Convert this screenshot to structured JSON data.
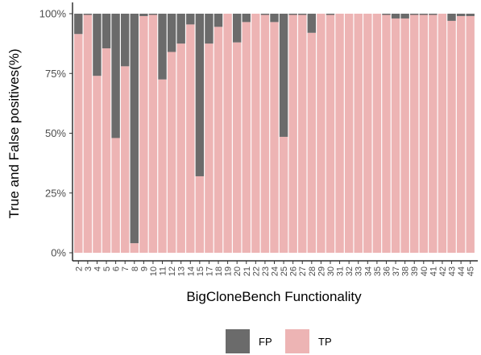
{
  "chart_data": {
    "type": "bar",
    "stacked": true,
    "title": "",
    "xlabel": "BigCloneBench Functionality",
    "ylabel": "True and False positives(%)",
    "ylim": [
      0,
      100
    ],
    "y_ticks": [
      0,
      25,
      50,
      75,
      100
    ],
    "y_tick_labels": [
      "0%",
      "25%",
      "50%",
      "75%",
      "100%"
    ],
    "grid": false,
    "legend_position": "bottom",
    "categories": [
      "2",
      "3",
      "4",
      "5",
      "6",
      "7",
      "8",
      "9",
      "10",
      "11",
      "12",
      "13",
      "14",
      "15",
      "17",
      "18",
      "19",
      "20",
      "21",
      "22",
      "23",
      "24",
      "25",
      "26",
      "27",
      "28",
      "29",
      "30",
      "31",
      "32",
      "33",
      "34",
      "35",
      "36",
      "37",
      "38",
      "39",
      "40",
      "41",
      "42",
      "43",
      "44",
      "45"
    ],
    "series": [
      {
        "name": "TP",
        "color": "#edb4b4",
        "values": [
          91.5,
          99.5,
          74,
          85.5,
          48,
          78,
          4,
          99,
          99.5,
          72.5,
          84,
          87.5,
          95.5,
          32,
          87.5,
          94.5,
          100,
          88,
          96.5,
          100,
          99.5,
          96.5,
          48.5,
          99.5,
          99.5,
          92,
          100,
          99.5,
          100,
          100,
          100,
          100,
          100,
          99.5,
          98,
          98,
          99.5,
          99.5,
          99.5,
          100,
          97,
          99,
          99
        ]
      },
      {
        "name": "FP",
        "color": "#6b6b6b",
        "values": [
          8.5,
          0.5,
          26,
          14.5,
          52,
          22,
          96,
          1,
          0.5,
          27.5,
          16,
          12.5,
          4.5,
          68,
          12.5,
          5.5,
          0,
          12,
          3.5,
          0,
          0.5,
          3.5,
          51.5,
          0.5,
          0.5,
          8,
          0,
          0.5,
          0,
          0,
          0,
          0,
          0,
          0.5,
          2,
          2,
          0.5,
          0.5,
          0.5,
          0,
          3,
          1,
          1
        ]
      }
    ]
  }
}
